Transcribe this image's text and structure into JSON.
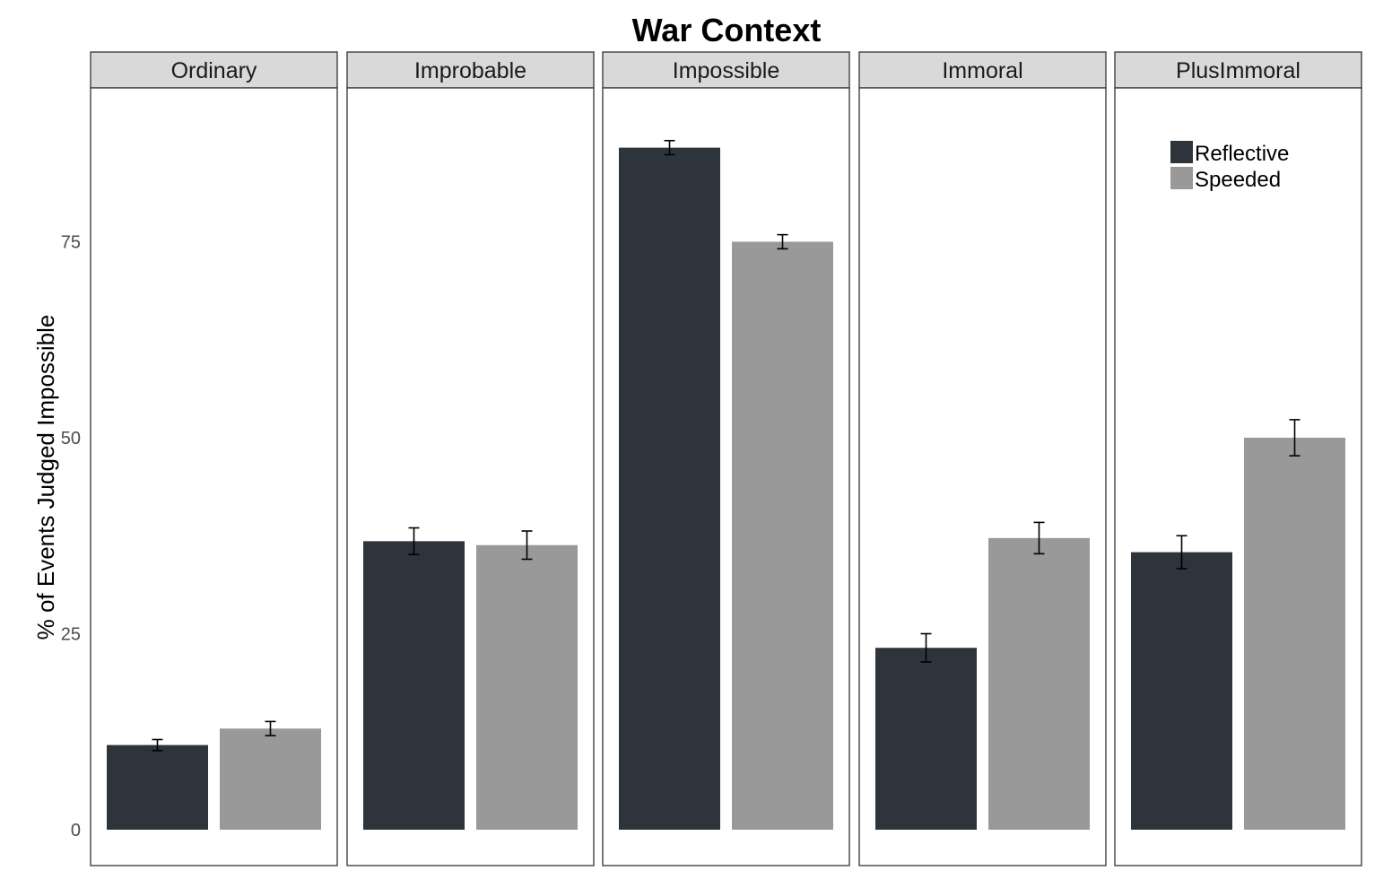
{
  "chart_data": {
    "type": "bar",
    "title": "War Context",
    "ylabel": "% of Events Judged Impossible",
    "xlabel": "",
    "ylim": [
      0,
      96
    ],
    "yticks": [
      0,
      25,
      50,
      75
    ],
    "grid": false,
    "legend_position": "top-right",
    "panels": [
      "Ordinary",
      "Improbable",
      "Impossible",
      "Immoral",
      "PlusImmoral"
    ],
    "series": [
      {
        "name": "Reflective",
        "color": "#2d343b",
        "values": [
          10.8,
          36.8,
          87.0,
          23.2,
          35.4
        ],
        "error": [
          0.7,
          1.7,
          0.9,
          1.8,
          2.1
        ]
      },
      {
        "name": "Speeded",
        "color": "#999999",
        "values": [
          12.9,
          36.3,
          75.0,
          37.2,
          50.0
        ],
        "error": [
          0.9,
          1.8,
          0.9,
          2.0,
          2.3
        ]
      }
    ]
  }
}
